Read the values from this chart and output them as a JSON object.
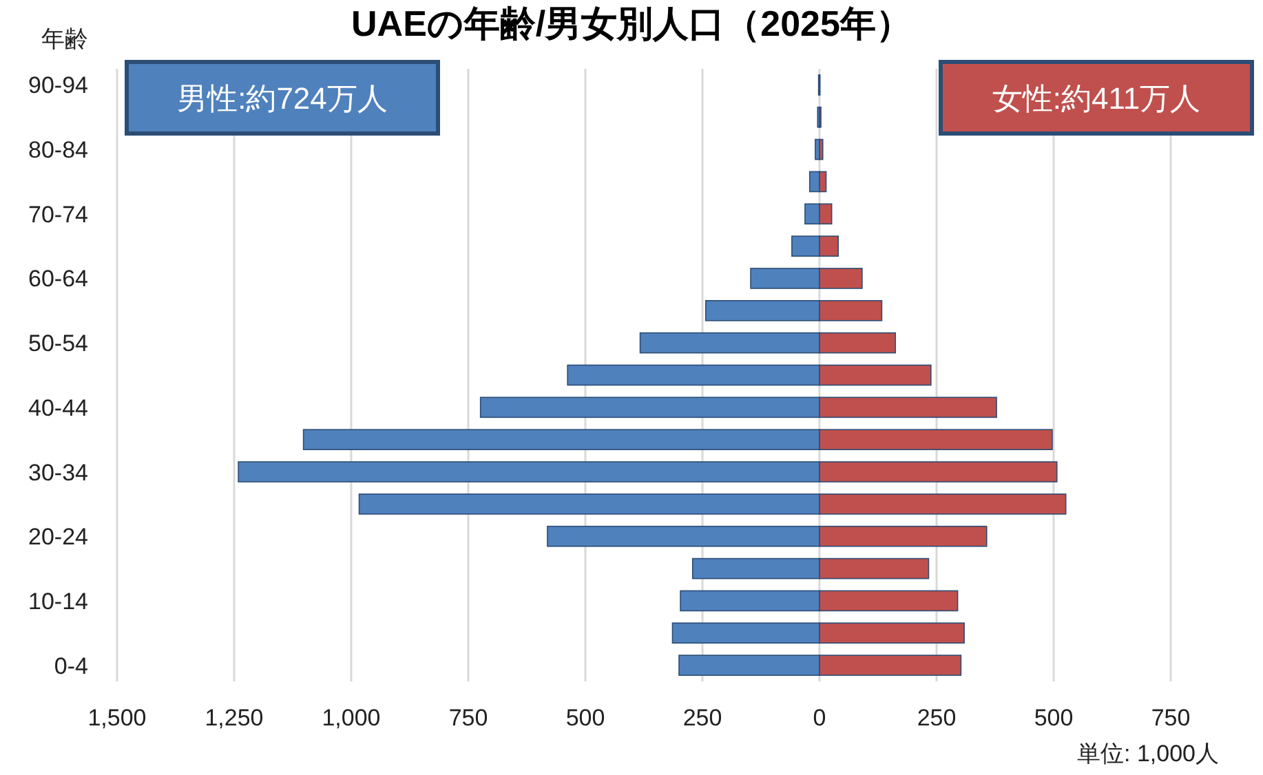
{
  "chart_data": {
    "type": "bar",
    "orientation": "horizontal",
    "stacked": true,
    "title": "UAEの年齢/男女別人口（2025年）",
    "ylabel": "年齢",
    "annotations": [
      "単位: 1,000人"
    ],
    "categories": [
      "90-94",
      null,
      "80-84",
      null,
      "70-74",
      null,
      "60-64",
      null,
      "50-54",
      null,
      "40-44",
      null,
      "30-34",
      null,
      "20-24",
      null,
      "10-14",
      null,
      "0-4"
    ],
    "series": [
      {
        "name": "男性:約724万人",
        "color": "#4f81bd",
        "values": [
          -2,
          -4,
          -9,
          -21,
          -31,
          -59,
          -147,
          -243,
          -383,
          -538,
          -724,
          -1102,
          -1241,
          -983,
          -581,
          -271,
          -297,
          -314,
          -300
        ]
      },
      {
        "name": "女性:約411万人",
        "color": "#c0504d",
        "values": [
          1,
          3,
          7,
          14,
          26,
          40,
          91,
          133,
          162,
          238,
          378,
          497,
          507,
          526,
          357,
          233,
          295,
          309,
          302
        ]
      }
    ],
    "xlim": [
      -1500,
      750
    ],
    "xticks": [
      {
        "value": -1500,
        "label": "1,500"
      },
      {
        "value": -1250,
        "label": "1,250"
      },
      {
        "value": -1000,
        "label": "1,000"
      },
      {
        "value": -750,
        "label": "750"
      },
      {
        "value": -500,
        "label": "500"
      },
      {
        "value": -250,
        "label": "250"
      },
      0,
      250,
      500,
      750
    ],
    "grid": "x",
    "legend": "top"
  }
}
